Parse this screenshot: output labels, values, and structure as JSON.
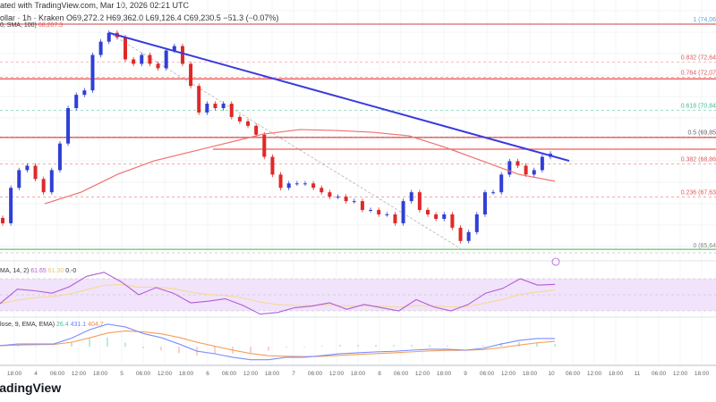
{
  "header": {
    "published": "ated with TradingView.com, Mar 10, 2026 02:21 UTC",
    "symbol": "ollar · 1h · Kraken",
    "open": "O69,272.2",
    "high": "H69,362.0",
    "low": "L69,126.4",
    "close": "C69,230.5",
    "change": "−51.3 (−0.07%)",
    "sma_legend": "0, SMA, 100)",
    "sma_value": "68,207.3"
  },
  "rsi_legend": {
    "label": "MA, 14, 2)",
    "rsi": "61.65",
    "ma": "61.30",
    "extra": "0.-0"
  },
  "macd_legend": {
    "label": "lose, 9, EMA, EMA)",
    "hist": "26.4",
    "macd": "431.1",
    "signal": "404.7"
  },
  "logo": "TradingView",
  "colors": {
    "up": "#2f3fd6",
    "down": "#e02828",
    "sma": "#f07070",
    "trend": "#3a3ae0",
    "rsi": "#b35cd6",
    "rsi_ma": "#f5d98a",
    "macd": "#7b8cff",
    "signal": "#f5a05a",
    "hline_red": "#f05a5a",
    "hline_green": "#6cc26c"
  },
  "chart_data": {
    "type": "candlestick",
    "ylim": [
      65640,
      74060
    ],
    "grid": true,
    "close": [
      66641,
      67961,
      68621,
      68786,
      68291,
      67796,
      68621,
      69611,
      70931,
      71426,
      71591,
      72911,
      73406,
      73736,
      73571,
      72746,
      72581,
      72911,
      72581,
      72416,
      73076,
      73241,
      72581,
      71756,
      70766,
      71096,
      70931,
      71096,
      70601,
      70436,
      70271,
      69941,
      69116,
      68456,
      67961,
      68126,
      68126,
      68126,
      67961,
      67796,
      67631,
      67631,
      67466,
      67466,
      67136,
      67136,
      66971,
      66971,
      66641,
      67466,
      67796,
      67136,
      66971,
      66806,
      66971,
      66476,
      65981,
      66311,
      66971,
      67796,
      67796,
      68456,
      68951,
      68786,
      68456,
      68621,
      69116,
      69230
    ],
    "sma_100": [
      67367,
      67800,
      68466,
      68965,
      69298,
      69631,
      69964,
      70131,
      70097,
      70031,
      69898,
      69465,
      68965,
      68466,
      68207
    ],
    "trendline": {
      "start": 73736,
      "end": 68965
    },
    "horizontal_levels": [
      {
        "price": 74060,
        "color": "red"
      },
      {
        "price": 72020,
        "color": "red"
      },
      {
        "price": 69840,
        "color": "red"
      },
      {
        "price": 69400,
        "color": "red"
      },
      {
        "price": 65670,
        "color": "green"
      }
    ],
    "fib_levels": [
      {
        "ratio": 1,
        "label": "1 (74,06",
        "color": "#5fa8d8"
      },
      {
        "ratio": 0.832,
        "label": "0.832 (72,64",
        "color": "#e05a5a"
      },
      {
        "ratio": 0.764,
        "label": "0.764 (72,07",
        "color": "#e05a5a"
      },
      {
        "ratio": 0.618,
        "label": "0.618 (70,84",
        "color": "#3fbf8f"
      },
      {
        "ratio": 0.5,
        "label": "0.5 (69,85",
        "color": "#666666"
      },
      {
        "ratio": 0.382,
        "label": "0.382 (68,86",
        "color": "#e05a5a"
      },
      {
        "ratio": 0.236,
        "label": "0.236 (67,63",
        "color": "#e05a5a"
      },
      {
        "ratio": 0,
        "label": "0 (65,64",
        "color": "#888888"
      }
    ],
    "rsi": [
      39,
      57,
      55,
      52,
      60,
      73,
      78,
      66,
      50,
      59,
      52,
      40,
      42,
      45,
      37,
      26,
      28,
      34,
      36,
      40,
      32,
      38,
      34,
      30,
      44,
      35,
      30,
      38,
      52,
      58,
      70,
      62,
      63
    ],
    "rsi_bands": [
      30,
      70
    ],
    "macd": [
      50,
      140,
      140,
      140,
      450,
      900,
      1200,
      1050,
      700,
      480,
      140,
      -240,
      -380,
      -570,
      -700,
      -700,
      -570,
      -570,
      -480,
      -380,
      -330,
      -280,
      -250,
      -190,
      -140,
      -140,
      -190,
      -90,
      140,
      330,
      430,
      431
    ],
    "x_tick_labels": [
      "18:00",
      "4",
      "06:00",
      "12:00",
      "18:00",
      "5",
      "06:00",
      "12:00",
      "18:00",
      "6",
      "06:00",
      "12:00",
      "18:00",
      "7",
      "06:00",
      "12:00",
      "18:00",
      "8",
      "06:00",
      "12:00",
      "18:00",
      "9",
      "06:00",
      "12:00",
      "18:00",
      "10",
      "06:00",
      "12:00",
      "18:00",
      "11",
      "06:00",
      "12:00",
      "18:00"
    ]
  }
}
